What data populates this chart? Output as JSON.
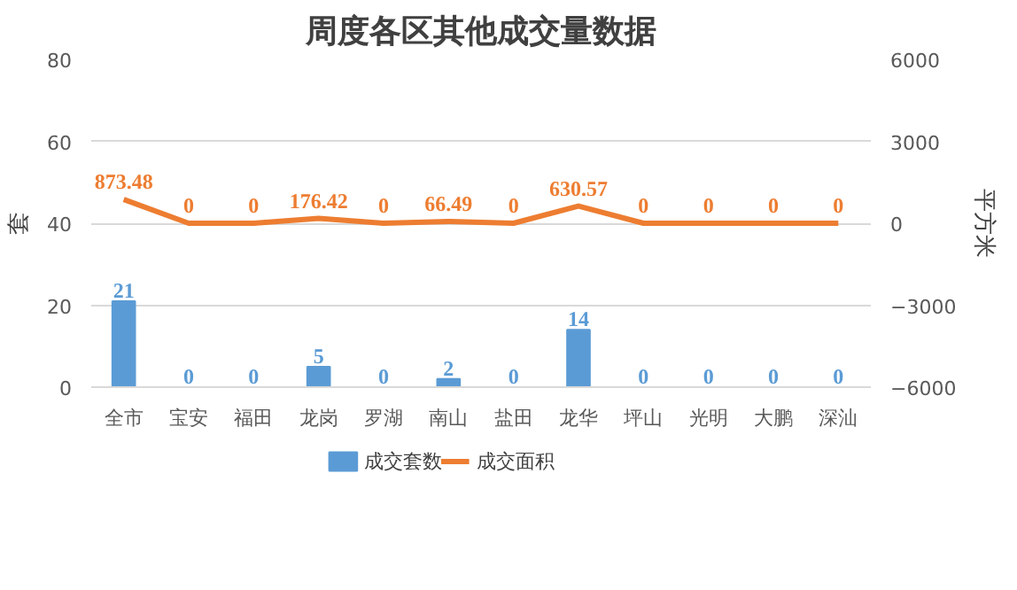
{
  "chart_data": {
    "type": "bar",
    "title": "周度各区其他成交量数据",
    "ylabel": "套",
    "y2label": "平方米",
    "categories": [
      "全市",
      "宝安",
      "福田",
      "龙岗",
      "罗湖",
      "南山",
      "盐田",
      "龙华",
      "坪山",
      "光明",
      "大鹏",
      "深汕"
    ],
    "series": [
      {
        "name": "成交套数",
        "type": "bar",
        "color": "#5b9bd5",
        "values": [
          21,
          0,
          0,
          5,
          0,
          2,
          0,
          14,
          0,
          0,
          0,
          0
        ]
      },
      {
        "name": "成交面积",
        "type": "line",
        "axis": "y2",
        "color": "#ed7d31",
        "values": [
          873.48,
          0,
          0,
          176.42,
          0,
          66.49,
          0,
          630.57,
          0,
          0,
          0,
          0
        ]
      }
    ],
    "ylim": [
      0,
      80
    ],
    "yticks": [
      0,
      20,
      40,
      60,
      80
    ],
    "y2lim": [
      -6000,
      6000
    ],
    "y2ticks": [
      -6000,
      -3000,
      0,
      3000,
      6000
    ],
    "grid": "y",
    "legend": "bottom",
    "data_labels": true
  }
}
